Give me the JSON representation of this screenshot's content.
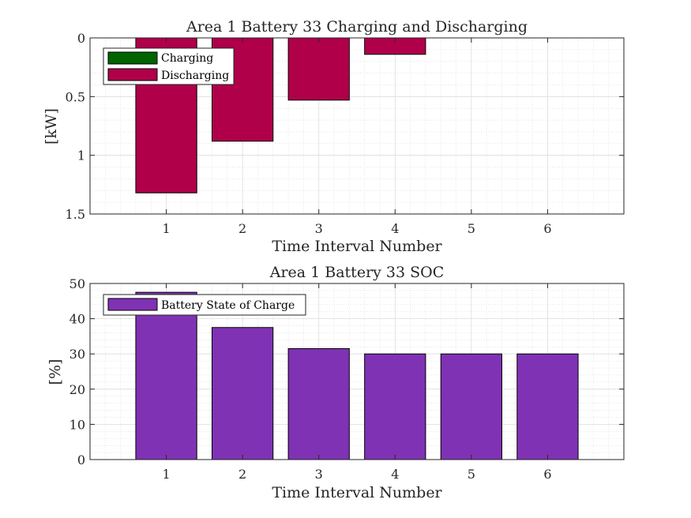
{
  "colors": {
    "charging": "#006400",
    "discharging": "#b00049",
    "soc": "#7f32b4"
  },
  "chart_data": [
    {
      "type": "bar",
      "title": "Area 1 Battery 33 Charging and Discharging",
      "xlabel": "Time Interval Number",
      "ylabel": "[kW]",
      "ylim": [
        0,
        1.5
      ],
      "y_reversed": true,
      "yticks": [
        "0",
        "0.5",
        "1",
        "1.5"
      ],
      "xlim": [
        0,
        7
      ],
      "categories": [
        "1",
        "2",
        "3",
        "4",
        "5",
        "6"
      ],
      "grid": true,
      "minor_grid": true,
      "legend_position": "top-left",
      "series": [
        {
          "name": "Charging",
          "values": [
            0,
            0,
            0,
            0,
            0,
            0
          ]
        },
        {
          "name": "Discharging",
          "values": [
            1.32,
            0.88,
            0.53,
            0.14,
            0,
            0
          ]
        }
      ]
    },
    {
      "type": "bar",
      "title": "Area 1 Battery 33 SOC",
      "xlabel": "Time Interval Number",
      "ylabel": "[%]",
      "ylim": [
        0,
        50
      ],
      "yticks": [
        "0",
        "10",
        "20",
        "30",
        "40",
        "50"
      ],
      "xlim": [
        0,
        7
      ],
      "categories": [
        "1",
        "2",
        "3",
        "4",
        "5",
        "6"
      ],
      "grid": true,
      "minor_grid": true,
      "legend_position": "top-left",
      "series": [
        {
          "name": "Battery State of Charge",
          "values": [
            47.5,
            37.5,
            31.5,
            30,
            30,
            30
          ]
        }
      ]
    }
  ]
}
